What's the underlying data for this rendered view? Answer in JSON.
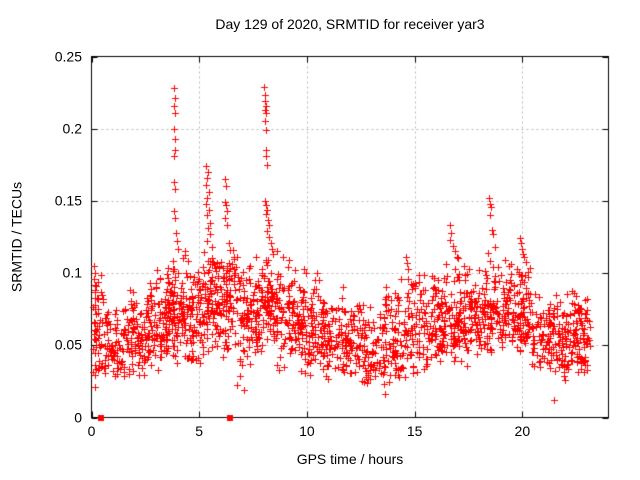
{
  "chart_data": {
    "type": "scatter",
    "title": "Day 129 of 2020, SRMTID for receiver yar3",
    "xlabel": "GPS time / hours",
    "ylabel": "SRMTID / TECUs",
    "xlim": [
      0,
      24
    ],
    "ylim": [
      0,
      0.25
    ],
    "xticks": {
      "values": [
        0,
        5,
        10,
        15,
        20
      ],
      "labels": [
        "0",
        "5",
        "10",
        "15",
        "20"
      ]
    },
    "yticks": {
      "values": [
        0,
        0.05,
        0.1,
        0.15,
        0.2,
        0.25
      ],
      "labels": [
        "0",
        "0.05",
        "0.1",
        "0.15",
        "0.2",
        "0.25"
      ]
    },
    "grid": true,
    "legend_position": "none",
    "marker": "plus",
    "colors": {
      "points": "#ff0000",
      "grid": "#b8b8b8",
      "axis": "#000000",
      "text": "#000000",
      "background": "#ffffff"
    },
    "zero_square_points": [
      [
        0.45,
        0
      ],
      [
        6.45,
        0
      ]
    ],
    "peak_points": [
      [
        0.12,
        0.105
      ],
      [
        0.15,
        0.1
      ],
      [
        0.1,
        0.096
      ],
      [
        0.18,
        0.092
      ],
      [
        0.14,
        0.088
      ],
      [
        3.82,
        0.228
      ],
      [
        3.86,
        0.221
      ],
      [
        3.83,
        0.216
      ],
      [
        3.87,
        0.211
      ],
      [
        3.84,
        0.2
      ],
      [
        3.86,
        0.193
      ],
      [
        3.88,
        0.185
      ],
      [
        3.83,
        0.181
      ],
      [
        3.85,
        0.163
      ],
      [
        3.87,
        0.158
      ],
      [
        3.84,
        0.143
      ],
      [
        3.89,
        0.138
      ],
      [
        3.92,
        0.128
      ],
      [
        3.97,
        0.122
      ],
      [
        4.02,
        0.117
      ],
      [
        5.3,
        0.174
      ],
      [
        5.42,
        0.17
      ],
      [
        5.36,
        0.166
      ],
      [
        5.33,
        0.161
      ],
      [
        5.45,
        0.156
      ],
      [
        5.38,
        0.152
      ],
      [
        5.31,
        0.148
      ],
      [
        5.44,
        0.144
      ],
      [
        5.36,
        0.14
      ],
      [
        5.48,
        0.135
      ],
      [
        5.4,
        0.131
      ],
      [
        5.52,
        0.127
      ],
      [
        5.34,
        0.122
      ],
      [
        5.58,
        0.118
      ],
      [
        6.18,
        0.165
      ],
      [
        6.24,
        0.16
      ],
      [
        6.2,
        0.149
      ],
      [
        6.23,
        0.147
      ],
      [
        6.28,
        0.143
      ],
      [
        6.21,
        0.138
      ],
      [
        6.3,
        0.133
      ],
      [
        6.36,
        0.121
      ],
      [
        6.42,
        0.116
      ],
      [
        8.02,
        0.229
      ],
      [
        8.07,
        0.223
      ],
      [
        8.04,
        0.219
      ],
      [
        8.08,
        0.216
      ],
      [
        8.05,
        0.213
      ],
      [
        8.1,
        0.211
      ],
      [
        8.06,
        0.205
      ],
      [
        8.08,
        0.199
      ],
      [
        8.12,
        0.185
      ],
      [
        8.09,
        0.181
      ],
      [
        8.14,
        0.175
      ],
      [
        8.06,
        0.15
      ],
      [
        8.11,
        0.147
      ],
      [
        8.16,
        0.144
      ],
      [
        8.09,
        0.141
      ],
      [
        8.19,
        0.137
      ],
      [
        8.23,
        0.133
      ],
      [
        8.13,
        0.129
      ],
      [
        8.26,
        0.125
      ],
      [
        8.31,
        0.121
      ],
      [
        8.37,
        0.117
      ],
      [
        8.44,
        0.113
      ],
      [
        8.62,
        0.115
      ],
      [
        8.9,
        0.111
      ],
      [
        9.85,
        0.103
      ],
      [
        9.95,
        0.1
      ],
      [
        14.58,
        0.111
      ],
      [
        14.63,
        0.107
      ],
      [
        14.68,
        0.103
      ],
      [
        16.62,
        0.133
      ],
      [
        16.7,
        0.128
      ],
      [
        16.66,
        0.123
      ],
      [
        16.78,
        0.119
      ],
      [
        16.88,
        0.115
      ],
      [
        16.98,
        0.111
      ],
      [
        18.44,
        0.152
      ],
      [
        18.5,
        0.148
      ],
      [
        18.56,
        0.146
      ],
      [
        18.49,
        0.14
      ],
      [
        18.58,
        0.13
      ],
      [
        18.64,
        0.127
      ],
      [
        18.74,
        0.118
      ],
      [
        18.4,
        0.114
      ],
      [
        19.88,
        0.124
      ],
      [
        19.94,
        0.121
      ],
      [
        19.99,
        0.117
      ],
      [
        20.04,
        0.113
      ],
      [
        20.1,
        0.111
      ],
      [
        20.19,
        0.108
      ],
      [
        0.14,
        0.021
      ],
      [
        7.08,
        0.019
      ],
      [
        13.62,
        0.016
      ],
      [
        21.48,
        0.012
      ]
    ],
    "density_bins": [
      {
        "x0": 0.05,
        "x1": 0.6,
        "n": 55,
        "ymin": 0.022,
        "ymode": 0.045,
        "ymax": 0.105
      },
      {
        "x0": 0.6,
        "x1": 1.6,
        "n": 75,
        "ymin": 0.025,
        "ymode": 0.042,
        "ymax": 0.08
      },
      {
        "x0": 1.6,
        "x1": 2.6,
        "n": 85,
        "ymin": 0.028,
        "ymode": 0.05,
        "ymax": 0.092
      },
      {
        "x0": 2.6,
        "x1": 3.5,
        "n": 90,
        "ymin": 0.03,
        "ymode": 0.057,
        "ymax": 0.108
      },
      {
        "x0": 3.5,
        "x1": 4.3,
        "n": 95,
        "ymin": 0.035,
        "ymode": 0.068,
        "ymax": 0.115
      },
      {
        "x0": 4.3,
        "x1": 5.2,
        "n": 90,
        "ymin": 0.032,
        "ymode": 0.062,
        "ymax": 0.118
      },
      {
        "x0": 5.2,
        "x1": 6.1,
        "n": 95,
        "ymin": 0.04,
        "ymode": 0.075,
        "ymax": 0.12
      },
      {
        "x0": 6.1,
        "x1": 6.7,
        "n": 70,
        "ymin": 0.04,
        "ymode": 0.082,
        "ymax": 0.118
      },
      {
        "x0": 6.7,
        "x1": 7.7,
        "n": 90,
        "ymin": 0.022,
        "ymode": 0.072,
        "ymax": 0.115
      },
      {
        "x0": 7.7,
        "x1": 8.5,
        "n": 80,
        "ymin": 0.04,
        "ymode": 0.078,
        "ymax": 0.115
      },
      {
        "x0": 8.5,
        "x1": 9.6,
        "n": 90,
        "ymin": 0.032,
        "ymode": 0.065,
        "ymax": 0.112
      },
      {
        "x0": 9.6,
        "x1": 10.6,
        "n": 90,
        "ymin": 0.028,
        "ymode": 0.055,
        "ymax": 0.102
      },
      {
        "x0": 10.6,
        "x1": 11.6,
        "n": 80,
        "ymin": 0.026,
        "ymode": 0.05,
        "ymax": 0.088
      },
      {
        "x0": 11.6,
        "x1": 12.6,
        "n": 80,
        "ymin": 0.022,
        "ymode": 0.047,
        "ymax": 0.095
      },
      {
        "x0": 12.6,
        "x1": 13.6,
        "n": 80,
        "ymin": 0.016,
        "ymode": 0.044,
        "ymax": 0.08
      },
      {
        "x0": 13.6,
        "x1": 14.6,
        "n": 80,
        "ymin": 0.02,
        "ymode": 0.05,
        "ymax": 0.1
      },
      {
        "x0": 14.6,
        "x1": 15.6,
        "n": 80,
        "ymin": 0.026,
        "ymode": 0.052,
        "ymax": 0.108
      },
      {
        "x0": 15.6,
        "x1": 16.5,
        "n": 85,
        "ymin": 0.03,
        "ymode": 0.057,
        "ymax": 0.112
      },
      {
        "x0": 16.5,
        "x1": 17.5,
        "n": 90,
        "ymin": 0.035,
        "ymode": 0.065,
        "ymax": 0.115
      },
      {
        "x0": 17.5,
        "x1": 18.5,
        "n": 90,
        "ymin": 0.04,
        "ymode": 0.07,
        "ymax": 0.112
      },
      {
        "x0": 18.5,
        "x1": 19.5,
        "n": 90,
        "ymin": 0.04,
        "ymode": 0.068,
        "ymax": 0.115
      },
      {
        "x0": 19.5,
        "x1": 20.4,
        "n": 90,
        "ymin": 0.035,
        "ymode": 0.065,
        "ymax": 0.11
      },
      {
        "x0": 20.4,
        "x1": 21.5,
        "n": 80,
        "ymin": 0.025,
        "ymode": 0.052,
        "ymax": 0.09
      },
      {
        "x0": 21.5,
        "x1": 22.3,
        "n": 70,
        "ymin": 0.022,
        "ymode": 0.05,
        "ymax": 0.092
      },
      {
        "x0": 22.3,
        "x1": 23.15,
        "n": 85,
        "ymin": 0.022,
        "ymode": 0.058,
        "ymax": 0.095
      }
    ]
  }
}
